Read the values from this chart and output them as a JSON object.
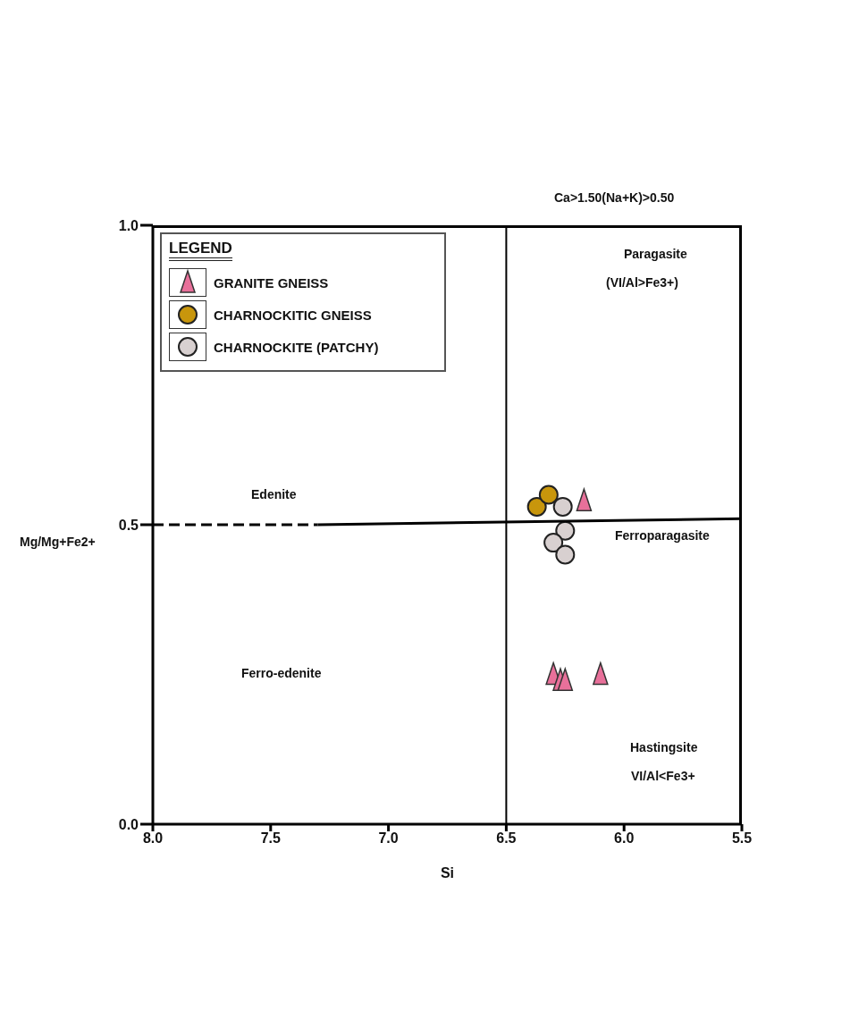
{
  "chart_data": {
    "type": "scatter",
    "xlabel": "Si",
    "ylabel": "Mg/Mg+Fe2+",
    "legend_title": "LEGEND",
    "legend": "top left",
    "grid": false,
    "xlim": [
      8.0,
      5.5
    ],
    "xticks": [
      {
        "value": 8.0,
        "label": "8.0"
      },
      {
        "value": 7.5,
        "label": "7.5"
      },
      {
        "value": 7.0,
        "label": "7.0"
      },
      {
        "value": 6.5,
        "label": "6.5"
      },
      {
        "value": 6.0,
        "label": "6.0"
      },
      {
        "value": 5.5,
        "label": "5.5"
      }
    ],
    "ylim": [
      0,
      1.0
    ],
    "yticks": [
      {
        "value": 0,
        "label": "0.0"
      },
      {
        "value": 0.5,
        "label": "0.5"
      },
      {
        "value": 1.0,
        "label": "1.0"
      }
    ],
    "ref_lines": [
      {
        "axis": "x",
        "value": 6.5,
        "color": "#000000"
      }
    ],
    "annotations": [
      "Ca>1.50(Na+K)>0.50",
      "Paragasite",
      "(VI/Al>Fe3+)",
      "Edenite",
      "Ferroparagasite",
      "Ferro-edenite",
      "Hastingsite",
      "VI/Al<Fe3+"
    ],
    "series": [
      {
        "name": "GRANITE GNEISS",
        "color": "#e8709a",
        "marker": "triangle",
        "x": [
          6.17,
          6.3,
          6.27,
          6.25,
          6.1
        ],
        "values": [
          0.54,
          0.25,
          0.24,
          0.24,
          0.25
        ]
      },
      {
        "name": "CHARNOCKITIC GNEISS",
        "color": "#c8960c",
        "marker": "circle",
        "x": [
          6.37,
          6.32
        ],
        "values": [
          0.53,
          0.55
        ]
      },
      {
        "name": "CHARNOCKITE (PATCHY)",
        "color": "#d8d0d0",
        "marker": "circle",
        "x": [
          6.26,
          6.25,
          6.3,
          6.25
        ],
        "values": [
          0.53,
          0.49,
          0.47,
          0.45
        ]
      },
      {
        "type": "line",
        "color": "#000000",
        "line_style": "dashed",
        "marker": "none",
        "x": [
          8.0,
          7.3
        ],
        "values": [
          0.5,
          0.5
        ]
      },
      {
        "type": "line",
        "color": "#000000",
        "line_style": "solid",
        "marker": "none",
        "x": [
          7.3,
          5.5
        ],
        "values": [
          0.5,
          0.51
        ]
      }
    ]
  }
}
